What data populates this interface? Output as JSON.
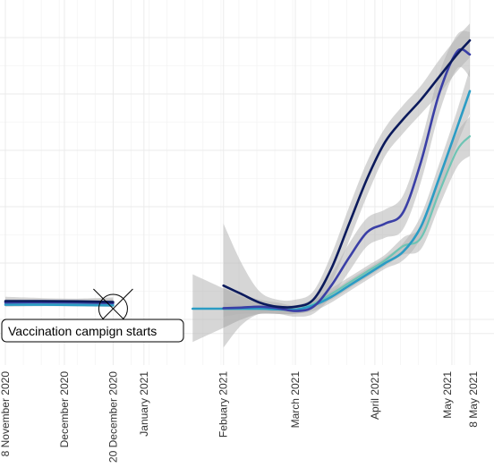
{
  "chart_data": {
    "type": "line",
    "title": "",
    "xlabel": "",
    "ylabel": "",
    "x_axis": "date",
    "grid": true,
    "legend": "none",
    "x_ticks": [
      {
        "date": "2020-11-08",
        "label": "8 November 2020"
      },
      {
        "date": "2020-12-01",
        "label": "December 2020"
      },
      {
        "date": "2020-12-20",
        "label": "20 December 2020"
      },
      {
        "date": "2021-01-01",
        "label": "January 2021"
      },
      {
        "date": "2021-02-01",
        "label": "Febuary 2021"
      },
      {
        "date": "2021-03-01",
        "label": "March 2021"
      },
      {
        "date": "2021-04-01",
        "label": "April 2021"
      },
      {
        "date": "2021-05-01",
        "label": "May 2021"
      },
      {
        "date": "2021-05-08",
        "label": "8 May 2021"
      }
    ],
    "annotation": {
      "text": "Vaccination campign starts",
      "date": "2020-12-20",
      "marker": "circle-x"
    },
    "colors": {
      "navy": "#0b1a5c",
      "indigo": "#3a3fa6",
      "teal": "#2b9cc4",
      "mint": "#6ec4b4",
      "band": "#b5b5b5",
      "grid": "#ebebeb"
    },
    "series": [
      {
        "color_key": "navy",
        "segments": [
          {
            "points": [
              [
                "2020-11-08",
                0.065
              ],
              [
                "2020-11-22",
                0.065
              ],
              [
                "2020-12-06",
                0.064
              ],
              [
                "2020-12-20",
                0.062
              ]
            ],
            "band": [
              [
                0.05,
                0.08
              ],
              [
                0.055,
                0.076
              ],
              [
                0.054,
                0.074
              ],
              [
                0.048,
                0.078
              ]
            ]
          },
          {
            "points": [
              [
                "2021-02-01",
                0.12
              ],
              [
                "2021-02-08",
                0.09
              ],
              [
                "2021-02-15",
                0.06
              ],
              [
                "2021-02-22",
                0.045
              ],
              [
                "2021-03-01",
                0.045
              ],
              [
                "2021-03-08",
                0.07
              ],
              [
                "2021-03-15",
                0.18
              ],
              [
                "2021-03-22",
                0.34
              ],
              [
                "2021-03-29",
                0.5
              ],
              [
                "2021-04-05",
                0.63
              ],
              [
                "2021-04-12",
                0.71
              ],
              [
                "2021-04-19",
                0.78
              ],
              [
                "2021-04-26",
                0.86
              ],
              [
                "2021-05-03",
                0.94
              ],
              [
                "2021-05-08",
                0.99
              ]
            ],
            "band": [
              [
                -0.1,
                0.34
              ],
              [
                -0.02,
                0.2
              ],
              [
                0.02,
                0.1
              ],
              [
                0.02,
                0.07
              ],
              [
                0.02,
                0.07
              ],
              [
                0.04,
                0.1
              ],
              [
                0.13,
                0.23
              ],
              [
                0.28,
                0.4
              ],
              [
                0.44,
                0.56
              ],
              [
                0.58,
                0.68
              ],
              [
                0.66,
                0.76
              ],
              [
                0.73,
                0.83
              ],
              [
                0.8,
                0.92
              ],
              [
                0.88,
                1.0
              ],
              [
                0.93,
                1.05
              ]
            ]
          }
        ]
      },
      {
        "color_key": "indigo",
        "segments": [
          {
            "points": [
              [
                "2020-11-08",
                0.06
              ],
              [
                "2020-11-22",
                0.061
              ],
              [
                "2020-12-06",
                0.06
              ],
              [
                "2020-12-20",
                0.058
              ]
            ],
            "band": [
              [
                0.048,
                0.072
              ],
              [
                0.052,
                0.07
              ],
              [
                0.05,
                0.07
              ],
              [
                0.046,
                0.072
              ]
            ]
          },
          {
            "points": [
              [
                "2021-02-01",
                0.04
              ],
              [
                "2021-02-08",
                0.042
              ],
              [
                "2021-02-15",
                0.045
              ],
              [
                "2021-02-22",
                0.04
              ],
              [
                "2021-03-01",
                0.03
              ],
              [
                "2021-03-08",
                0.045
              ],
              [
                "2021-03-15",
                0.12
              ],
              [
                "2021-03-22",
                0.22
              ],
              [
                "2021-03-29",
                0.31
              ],
              [
                "2021-04-05",
                0.34
              ],
              [
                "2021-04-12",
                0.38
              ],
              [
                "2021-04-19",
                0.56
              ],
              [
                "2021-04-26",
                0.8
              ],
              [
                "2021-05-03",
                0.95
              ],
              [
                "2021-05-08",
                0.94
              ]
            ],
            "band": [
              [
                -0.03,
                0.11
              ],
              [
                0.0,
                0.09
              ],
              [
                0.02,
                0.07
              ],
              [
                0.02,
                0.06
              ],
              [
                0.01,
                0.05
              ],
              [
                0.02,
                0.07
              ],
              [
                0.08,
                0.16
              ],
              [
                0.17,
                0.27
              ],
              [
                0.26,
                0.36
              ],
              [
                0.29,
                0.39
              ],
              [
                0.32,
                0.44
              ],
              [
                0.49,
                0.63
              ],
              [
                0.73,
                0.87
              ],
              [
                0.89,
                1.01
              ],
              [
                0.86,
                1.02
              ]
            ]
          }
        ]
      },
      {
        "color_key": "teal",
        "segments": [
          {
            "points": [
              [
                "2020-11-08",
                0.052
              ],
              [
                "2020-11-22",
                0.052
              ],
              [
                "2020-12-06",
                0.051
              ],
              [
                "2020-12-20",
                0.05
              ]
            ],
            "band": [
              [
                0.045,
                0.059
              ],
              [
                0.047,
                0.057
              ],
              [
                0.046,
                0.056
              ],
              [
                0.044,
                0.056
              ]
            ]
          },
          {
            "points": [
              [
                "2021-01-20",
                0.038
              ],
              [
                "2021-02-01",
                0.038
              ],
              [
                "2021-02-08",
                0.038
              ],
              [
                "2021-02-15",
                0.038
              ],
              [
                "2021-02-22",
                0.036
              ],
              [
                "2021-03-01",
                0.035
              ],
              [
                "2021-03-08",
                0.05
              ],
              [
                "2021-03-15",
                0.08
              ],
              [
                "2021-03-22",
                0.12
              ],
              [
                "2021-03-29",
                0.16
              ],
              [
                "2021-04-05",
                0.2
              ],
              [
                "2021-04-12",
                0.24
              ],
              [
                "2021-04-19",
                0.33
              ],
              [
                "2021-04-26",
                0.5
              ],
              [
                "2021-05-03",
                0.68
              ],
              [
                "2021-05-08",
                0.81
              ]
            ],
            "band": [
              [
                -0.08,
                0.16
              ],
              [
                -0.03,
                0.11
              ],
              [
                0.0,
                0.08
              ],
              [
                0.02,
                0.06
              ],
              [
                0.02,
                0.05
              ],
              [
                0.02,
                0.05
              ],
              [
                0.03,
                0.07
              ],
              [
                0.06,
                0.1
              ],
              [
                0.1,
                0.14
              ],
              [
                0.14,
                0.18
              ],
              [
                0.18,
                0.22
              ],
              [
                0.21,
                0.27
              ],
              [
                0.29,
                0.37
              ],
              [
                0.45,
                0.55
              ],
              [
                0.62,
                0.74
              ],
              [
                0.73,
                0.89
              ]
            ]
          }
        ]
      },
      {
        "color_key": "mint",
        "segments": [
          {
            "points": [
              [
                "2020-11-08",
                0.055
              ],
              [
                "2020-11-22",
                0.055
              ],
              [
                "2020-12-06",
                0.054
              ],
              [
                "2020-12-20",
                0.053
              ]
            ],
            "band": [
              [
                0.048,
                0.062
              ],
              [
                0.05,
                0.06
              ],
              [
                0.049,
                0.059
              ],
              [
                0.047,
                0.059
              ]
            ]
          },
          {
            "points": [
              [
                "2021-02-01",
                0.037
              ],
              [
                "2021-02-08",
                0.037
              ],
              [
                "2021-02-15",
                0.037
              ],
              [
                "2021-02-22",
                0.036
              ],
              [
                "2021-03-01",
                0.035
              ],
              [
                "2021-03-08",
                0.055
              ],
              [
                "2021-03-15",
                0.09
              ],
              [
                "2021-03-22",
                0.13
              ],
              [
                "2021-03-29",
                0.17
              ],
              [
                "2021-04-05",
                0.21
              ],
              [
                "2021-04-12",
                0.26
              ],
              [
                "2021-04-19",
                0.29
              ],
              [
                "2021-04-26",
                0.45
              ],
              [
                "2021-05-03",
                0.6
              ],
              [
                "2021-05-08",
                0.65
              ]
            ],
            "band": [
              [
                0.01,
                0.06
              ],
              [
                0.02,
                0.05
              ],
              [
                0.02,
                0.05
              ],
              [
                0.02,
                0.05
              ],
              [
                0.02,
                0.05
              ],
              [
                0.04,
                0.07
              ],
              [
                0.07,
                0.11
              ],
              [
                0.11,
                0.15
              ],
              [
                0.15,
                0.19
              ],
              [
                0.19,
                0.23
              ],
              [
                0.23,
                0.29
              ],
              [
                0.25,
                0.33
              ],
              [
                0.4,
                0.5
              ],
              [
                0.54,
                0.66
              ],
              [
                0.58,
                0.72
              ]
            ]
          }
        ]
      }
    ]
  }
}
